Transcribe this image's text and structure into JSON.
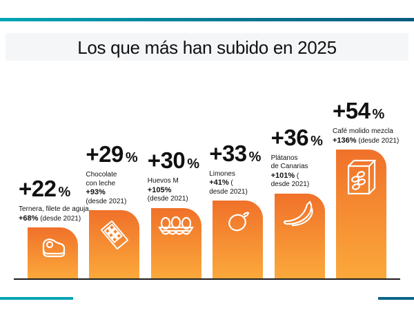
{
  "title": "Los que más han subido en 2025",
  "chart_data": {
    "type": "bar",
    "title": "Los que más han subido en 2025",
    "categories": [
      "Ternera, filete de aguja",
      "Chocolate con leche",
      "Huevos M",
      "Limones",
      "Plátanos de Canarias",
      "Café molido mezcla"
    ],
    "values": [
      22,
      29,
      30,
      33,
      36,
      54
    ],
    "unit": "%",
    "since_2021": [
      68,
      93,
      105,
      41,
      101,
      136
    ],
    "bar_gradient": [
      "#f0712a",
      "#fba93b"
    ],
    "items": [
      {
        "value": "+22",
        "pct": "%",
        "icon": "steak-icon",
        "lines": [
          {
            "t": "Ternera, filete de aguja"
          },
          {
            "b": "+68%",
            "t": " (desde 2021)"
          }
        ]
      },
      {
        "value": "+29",
        "pct": "%",
        "icon": "chocolate-bar-icon",
        "lines": [
          {
            "t": "Chocolate"
          },
          {
            "t": "con leche"
          },
          {
            "b": "+93%"
          },
          {
            "t": "(desde 2021)"
          }
        ]
      },
      {
        "value": "+30",
        "pct": "%",
        "icon": "egg-carton-icon",
        "lines": [
          {
            "t": "Huevos M"
          },
          {
            "b": "+105%"
          },
          {
            "t": "(desde 2021)"
          }
        ]
      },
      {
        "value": "+33",
        "pct": "%",
        "icon": "lemon-icon",
        "lines": [
          {
            "t": "Limones"
          },
          {
            "b": "+41%",
            "t": " ("
          },
          {
            "t": "desde 2021)"
          }
        ]
      },
      {
        "value": "+36",
        "pct": "%",
        "icon": "banana-icon",
        "lines": [
          {
            "t": "Plátanos"
          },
          {
            "t": "de Canarias"
          },
          {
            "b": "+101%",
            "t": " ("
          },
          {
            "t": "desde 2021)"
          }
        ]
      },
      {
        "value": "+54",
        "pct": "%",
        "icon": "coffee-box-icon",
        "lines": [
          {
            "t": "Café molido mezcla"
          },
          {
            "b": "+136%",
            "t": " (desde 2021)"
          }
        ]
      }
    ]
  }
}
